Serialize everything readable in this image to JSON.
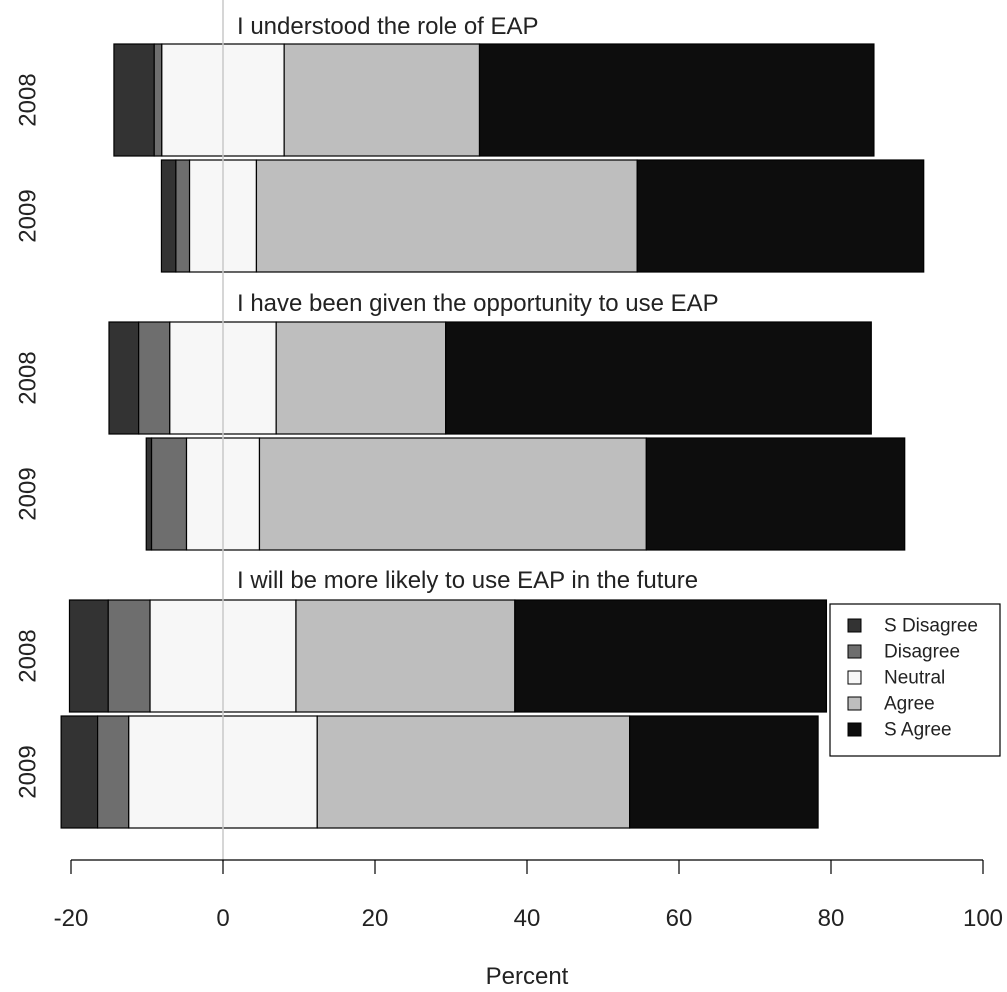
{
  "chart_data": {
    "type": "bar",
    "orientation": "horizontal",
    "stacked": "diverging",
    "xlabel": "Percent",
    "xlim": [
      -20,
      100
    ],
    "x_ticks": [
      -20,
      0,
      20,
      40,
      60,
      80,
      100
    ],
    "x_tick_labels": [
      "-20",
      "0",
      "20",
      "40",
      "60",
      "80",
      "100"
    ],
    "reference_line_at": 0,
    "legend_placement": "right",
    "categories": [
      "S Disagree",
      "Disagree",
      "Neutral",
      "Agree",
      "S Agree"
    ],
    "colors": [
      "#333333",
      "#6e6e6e",
      "#f7f7f7",
      "#bebebe",
      "#0d0d0d"
    ],
    "panels": [
      {
        "title": "I understood the role of EAP",
        "bars": [
          {
            "label": "2008",
            "values": [
              5.3,
              1.0,
              16.1,
              25.7,
              51.9
            ]
          },
          {
            "label": "2009",
            "values": [
              1.9,
              1.8,
              8.8,
              50.1,
              37.7
            ]
          }
        ]
      },
      {
        "title": "I have been given the opportunity to use EAP",
        "bars": [
          {
            "label": "2008",
            "values": [
              3.9,
              4.1,
              14.0,
              22.3,
              56.0
            ]
          },
          {
            "label": "2009",
            "values": [
              0.7,
              4.6,
              9.6,
              50.9,
              34.0
            ]
          }
        ]
      },
      {
        "title": "I will be more likely to use EAP in the future",
        "bars": [
          {
            "label": "2008",
            "values": [
              5.1,
              5.5,
              19.2,
              28.8,
              41.0
            ]
          },
          {
            "label": "2009",
            "values": [
              4.8,
              4.1,
              24.8,
              41.1,
              24.8
            ]
          }
        ]
      }
    ]
  }
}
